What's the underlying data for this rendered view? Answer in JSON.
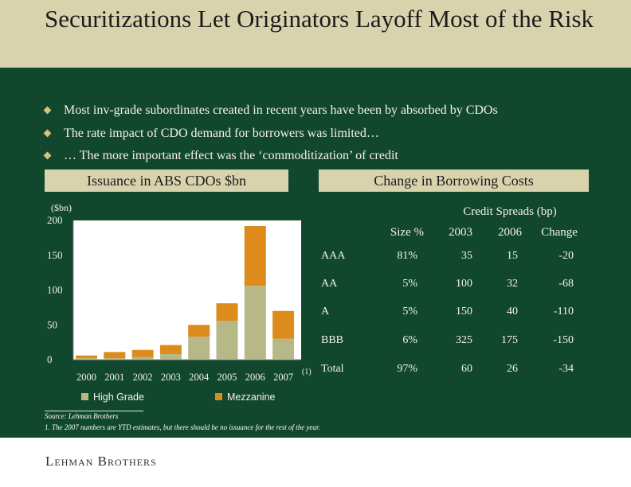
{
  "title": "Securitizations Let Originators Layoff Most of the Risk",
  "bullets": [
    "Most inv-grade subordinates created in recent years have been by absorbed by CDOs",
    "The rate impact of CDO demand for borrowers was limited…",
    "… The more important effect was the ‘commoditization’ of credit"
  ],
  "left_panel_title": "Issuance in ABS CDOs $bn",
  "right_panel_title": "Change in Borrowing Costs",
  "chart_data": {
    "type": "bar",
    "stacked": true,
    "ylabel": "($bn)",
    "ylim": [
      0,
      200
    ],
    "yticks": [
      "200",
      "150",
      "100",
      "50",
      "0"
    ],
    "categories": [
      "2000",
      "2001",
      "2002",
      "2003",
      "2004",
      "2005",
      "2006",
      "2007"
    ],
    "category_footnote": "(1)",
    "series": [
      {
        "name": "High Grade",
        "color": "#b6b987",
        "values": [
          2,
          2,
          4,
          8,
          33,
          56,
          106,
          30
        ]
      },
      {
        "name": "Mezzanine",
        "color": "#dd8b1c",
        "values": [
          4,
          9,
          10,
          13,
          17,
          25,
          86,
          40
        ]
      }
    ],
    "legend_position": "bottom"
  },
  "spreads_table": {
    "group_header": "Credit Spreads (bp)",
    "columns": [
      "Size %",
      "2003",
      "2006",
      "Change"
    ],
    "rows": [
      {
        "label": "AAA",
        "size": "81%",
        "y2003": "35",
        "y2006": "15",
        "change": "-20"
      },
      {
        "label": "AA",
        "size": "5%",
        "y2003": "100",
        "y2006": "32",
        "change": "-68"
      },
      {
        "label": "A",
        "size": "5%",
        "y2003": "150",
        "y2006": "40",
        "change": "-110"
      },
      {
        "label": "BBB",
        "size": "6%",
        "y2003": "325",
        "y2006": "175",
        "change": "-150"
      },
      {
        "label": "Total",
        "size": "97%",
        "y2003": "60",
        "y2006": "26",
        "change": "-34"
      }
    ]
  },
  "source": "Source: Lehman Brothers",
  "footnote": "1. The 2007 numbers are YTD estimates, but there should be no issuance for the rest of the year.",
  "logo": "Lehman Brothers"
}
